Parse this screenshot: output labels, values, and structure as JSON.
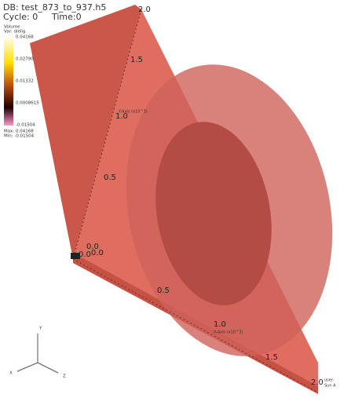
{
  "header": {
    "database": "DB: test_873_to_937.h5",
    "cycle": "Cycle: 0",
    "time": "Time:0"
  },
  "legend": {
    "title": "Volume",
    "variable": "Var: dielig",
    "ticks": [
      "0.04168",
      "0.02790",
      "0.01332",
      "0.0008615",
      "-0.01504"
    ],
    "max": "Max: 0.04168",
    "min": "Min: -0.01504"
  },
  "axes": {
    "y_ticks": [
      "2.0",
      "1.5",
      "1.0",
      "0.5",
      "0.0"
    ],
    "y_title": "Y-Axis (x10^3)",
    "x_ticks": [
      "0.0",
      "0.5",
      "1.0",
      "1.5",
      "2.0"
    ],
    "x_title": "X-Axis (x10^3)",
    "z_tick": "0.0",
    "user": "user:",
    "date": "Sun A"
  },
  "triad": {
    "y": "Y",
    "x": "X",
    "z": "Z"
  }
}
